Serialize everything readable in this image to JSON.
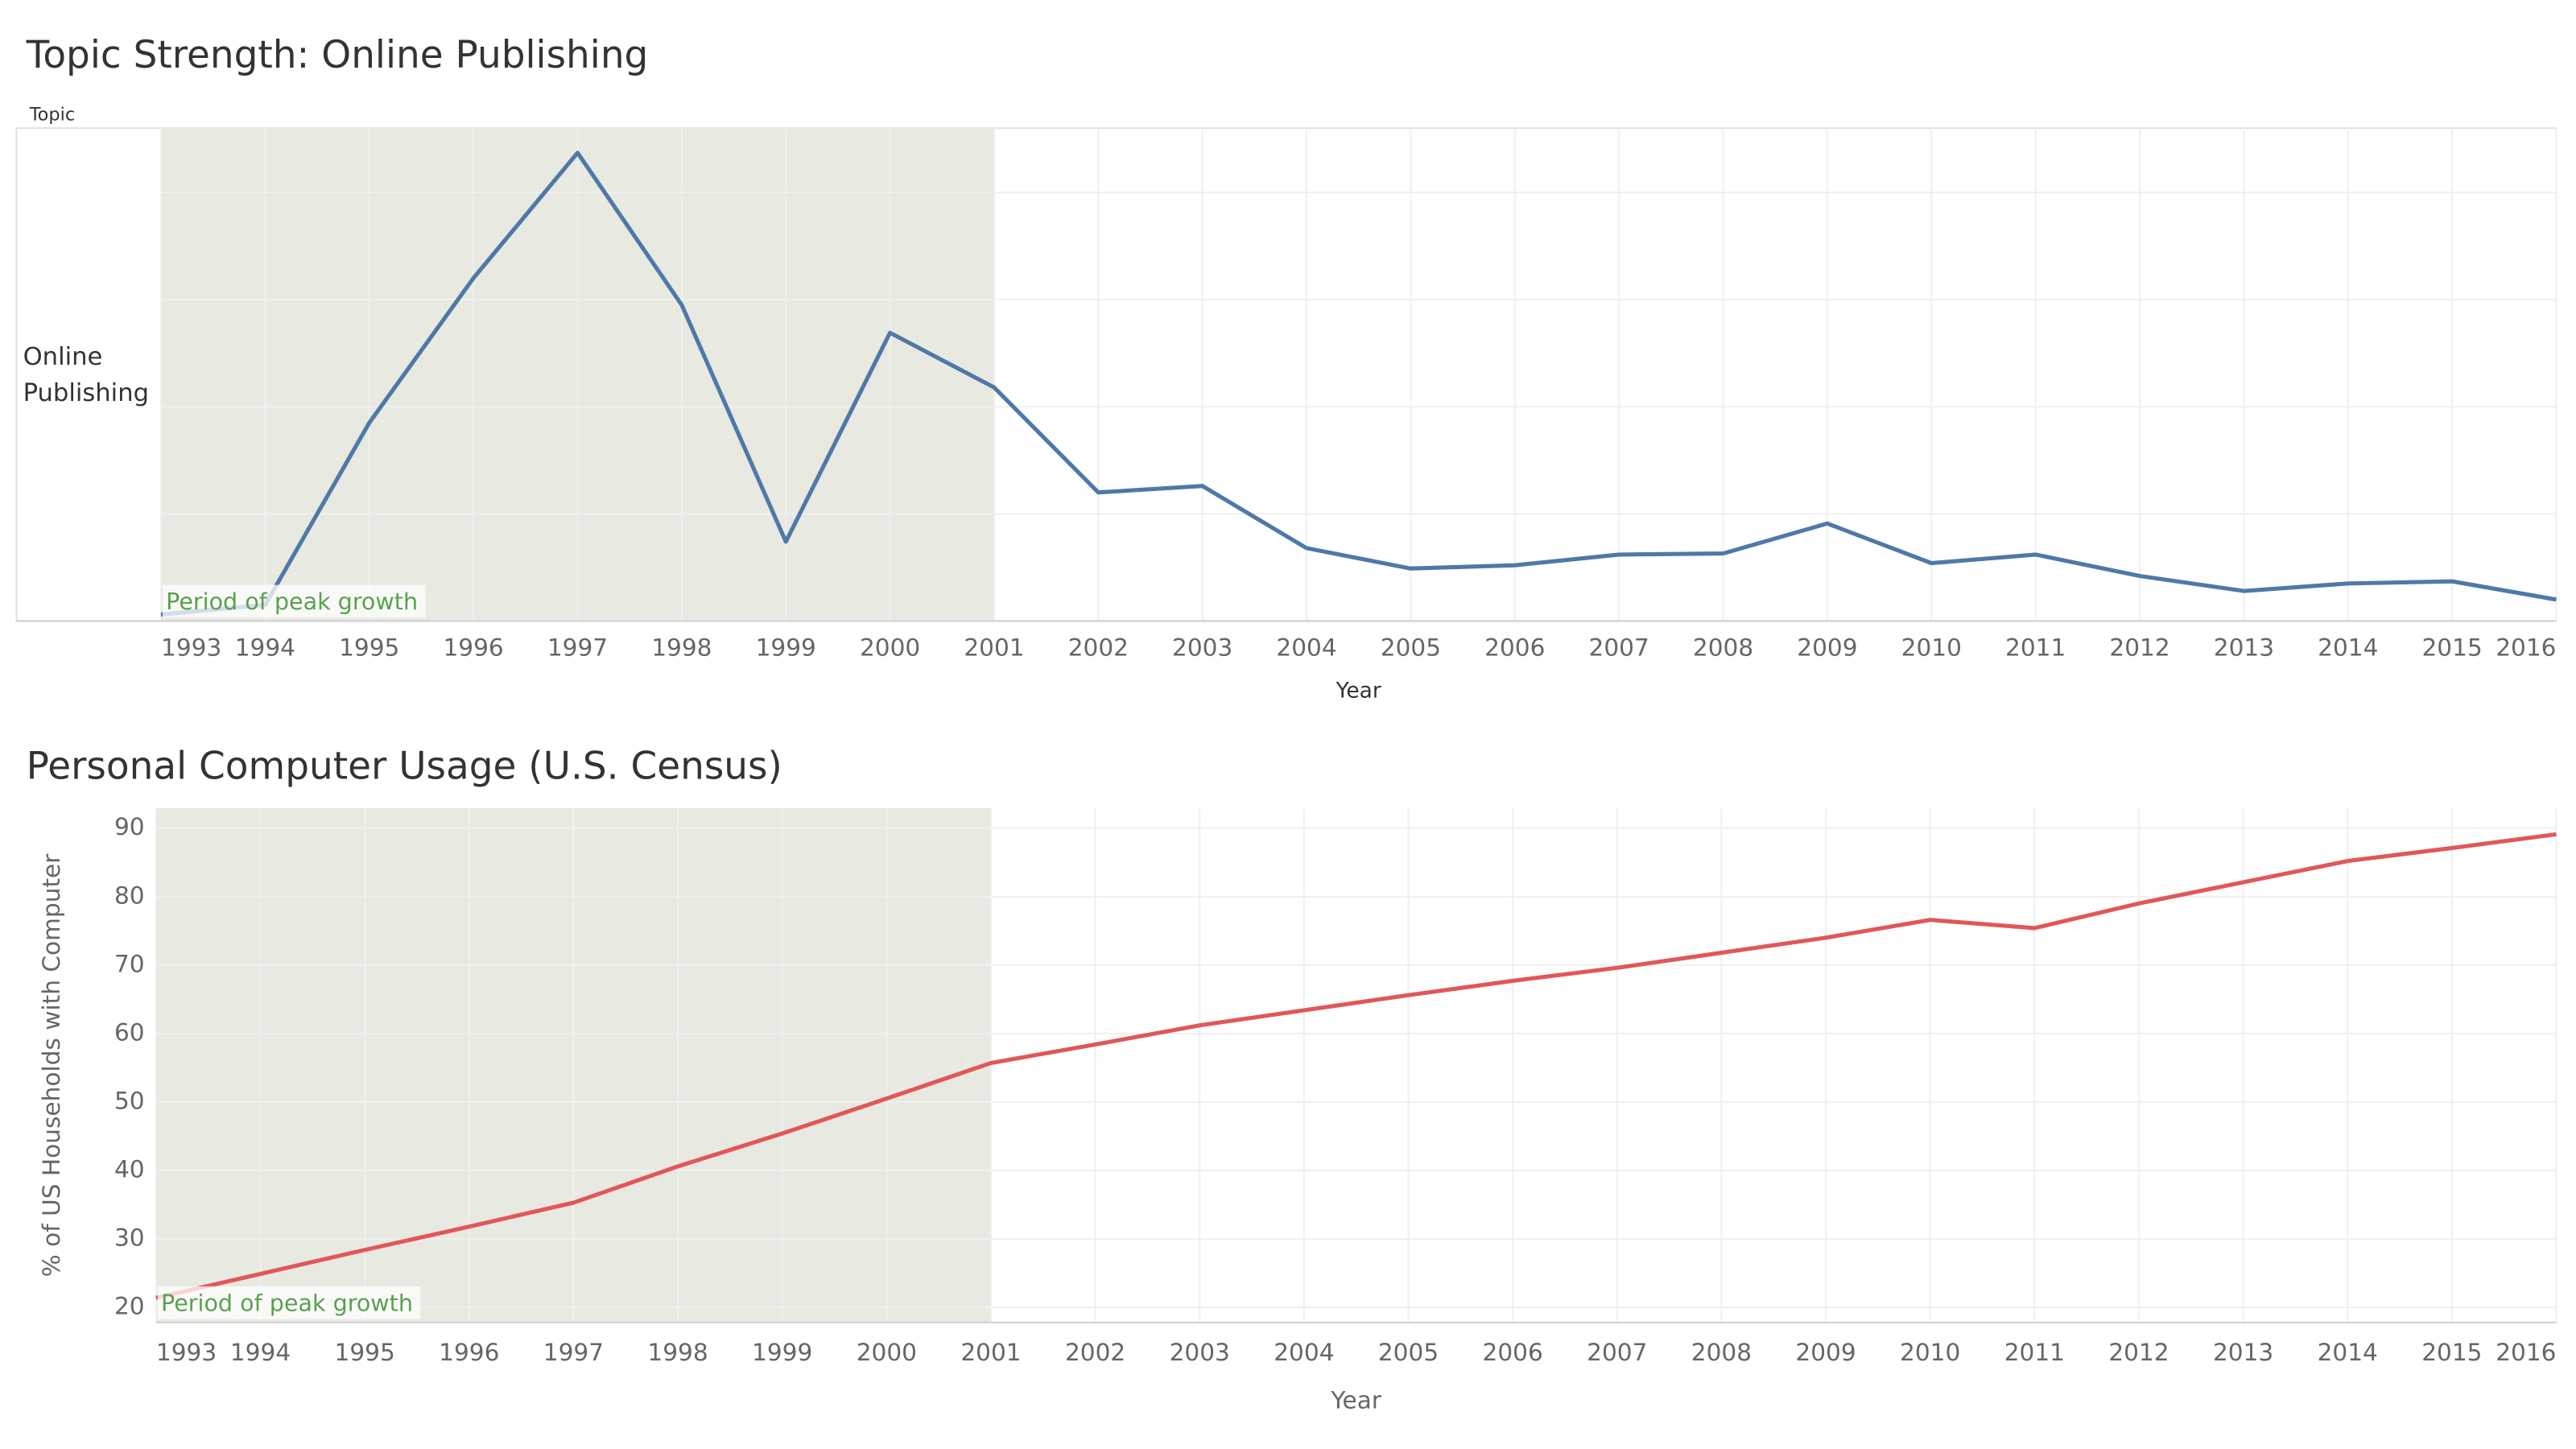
{
  "chart_data": [
    {
      "type": "line",
      "title": "Topic Strength: Online Publishing",
      "row_header": "Topic",
      "row_label": "Online Publishing",
      "xlabel": "Year",
      "x": [
        1993,
        1994,
        1995,
        1996,
        1997,
        1998,
        1999,
        2000,
        2001,
        2002,
        2003,
        2004,
        2005,
        2006,
        2007,
        2008,
        2009,
        2010,
        2011,
        2012,
        2013,
        2014,
        2015,
        2016
      ],
      "values": [
        0.06,
        0.15,
        1.85,
        3.2,
        4.37,
        2.95,
        0.74,
        2.69,
        2.18,
        1.2,
        1.26,
        0.68,
        0.49,
        0.52,
        0.62,
        0.63,
        0.91,
        0.54,
        0.62,
        0.42,
        0.28,
        0.35,
        0.37,
        0.2
      ],
      "color": "#4e79a7",
      "xlim": [
        1993,
        2016
      ],
      "xticks": [
        1993,
        1994,
        1995,
        1996,
        1997,
        1998,
        1999,
        2000,
        2001,
        2002,
        2003,
        2004,
        2005,
        2006,
        2007,
        2008,
        2009,
        2010,
        2011,
        2012,
        2013,
        2014,
        2015,
        2016
      ],
      "ylim": [
        0,
        4.6
      ],
      "yticks": [
        0,
        1,
        2,
        3,
        4
      ],
      "show_ytick_labels": false,
      "grid": true,
      "highlight": {
        "from": 1993,
        "to": 2001,
        "label": "Period of peak growth",
        "color": "#e8e9e1"
      }
    },
    {
      "type": "line",
      "title": "Personal Computer Usage (U.S. Census)",
      "xlabel": "Year",
      "ylabel": "% of US Households with Computer",
      "x": [
        1993,
        1994,
        1995,
        1996,
        1997,
        1998,
        1999,
        2000,
        2001,
        2002,
        2003,
        2004,
        2005,
        2006,
        2007,
        2008,
        2009,
        2010,
        2011,
        2012,
        2013,
        2014,
        2015,
        2016
      ],
      "values": [
        21.4,
        24.9,
        28.4,
        31.8,
        35.3,
        40.6,
        45.4,
        50.5,
        55.7,
        58.4,
        61.2,
        63.4,
        65.6,
        67.7,
        69.6,
        71.8,
        74.0,
        76.6,
        75.4,
        79.0,
        82.1,
        85.2,
        87.1,
        89.1
      ],
      "color": "#e15759",
      "xlim": [
        1993,
        2016
      ],
      "xticks": [
        1993,
        1994,
        1995,
        1996,
        1997,
        1998,
        1999,
        2000,
        2001,
        2002,
        2003,
        2004,
        2005,
        2006,
        2007,
        2008,
        2009,
        2010,
        2011,
        2012,
        2013,
        2014,
        2015,
        2016
      ],
      "ylim": [
        17.8,
        92.9
      ],
      "yticks": [
        20,
        30,
        40,
        50,
        60,
        70,
        80,
        90
      ],
      "show_ytick_labels": true,
      "grid": true,
      "highlight": {
        "from": 1993,
        "to": 2001,
        "label": "Period of peak growth",
        "color": "#e8e9e1"
      }
    }
  ]
}
